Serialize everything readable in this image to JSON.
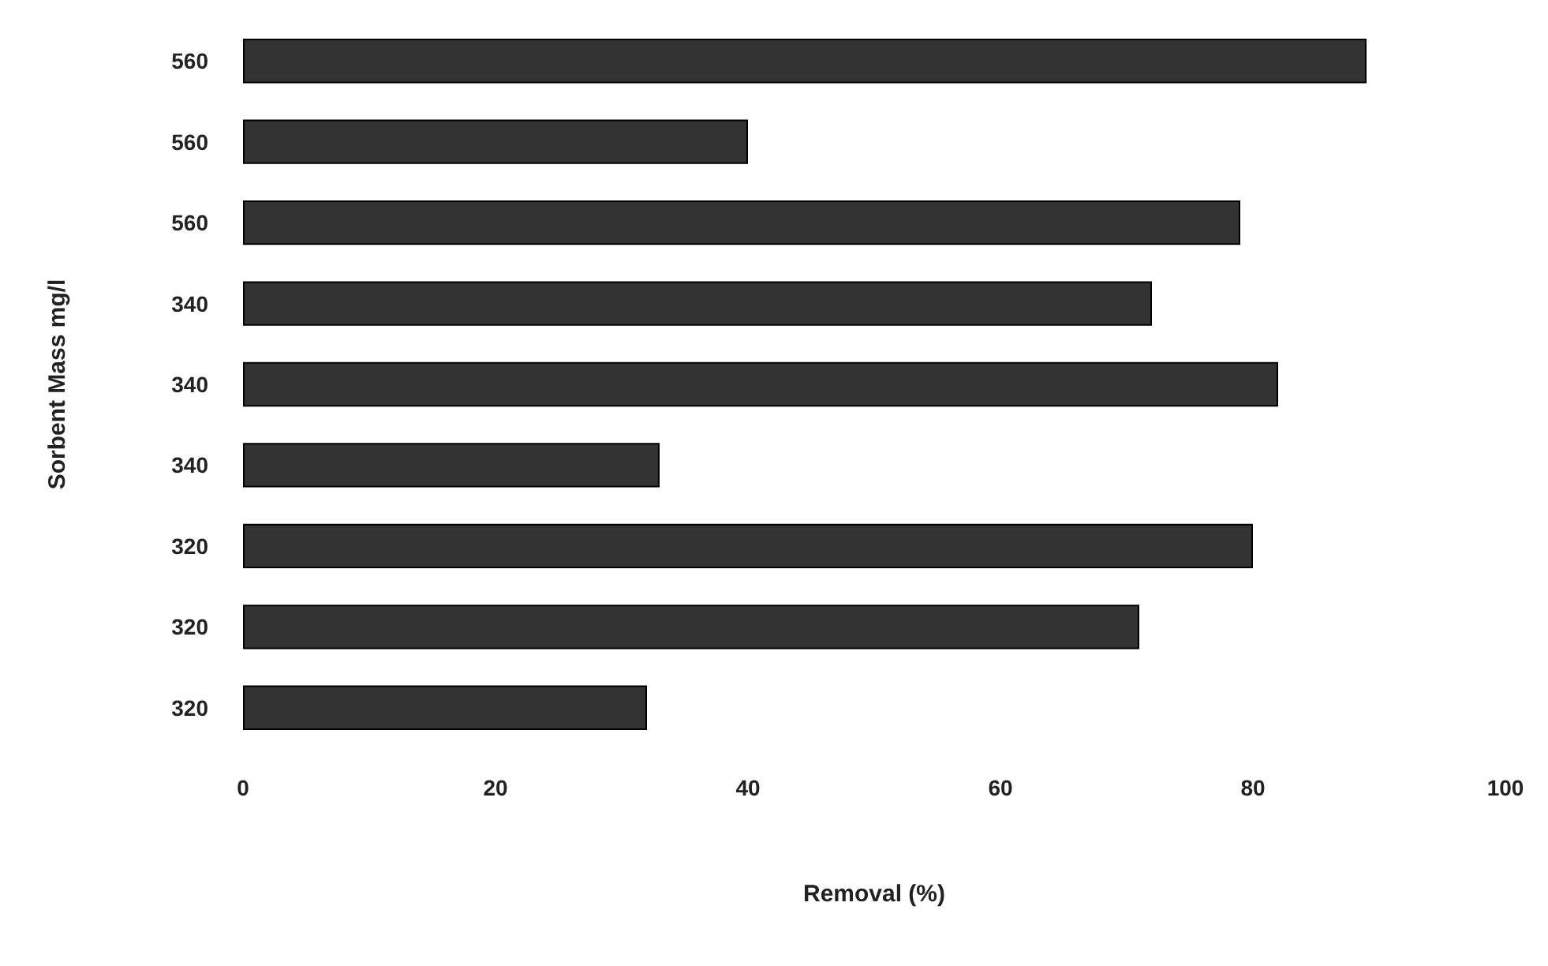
{
  "chart_data": {
    "type": "bar",
    "orientation": "horizontal",
    "xlabel": "Removal (%)",
    "ylabel": "Sorbent Mass mg/l",
    "categories": [
      "560",
      "560",
      "560",
      "340",
      "340",
      "340",
      "320",
      "320",
      "320"
    ],
    "values": [
      89,
      40,
      79,
      72,
      82,
      33,
      80,
      71,
      32
    ],
    "color": "#333333",
    "xlim": [
      0,
      100
    ],
    "xticks": [
      0,
      20,
      40,
      60,
      80,
      100
    ],
    "grid": false
  }
}
